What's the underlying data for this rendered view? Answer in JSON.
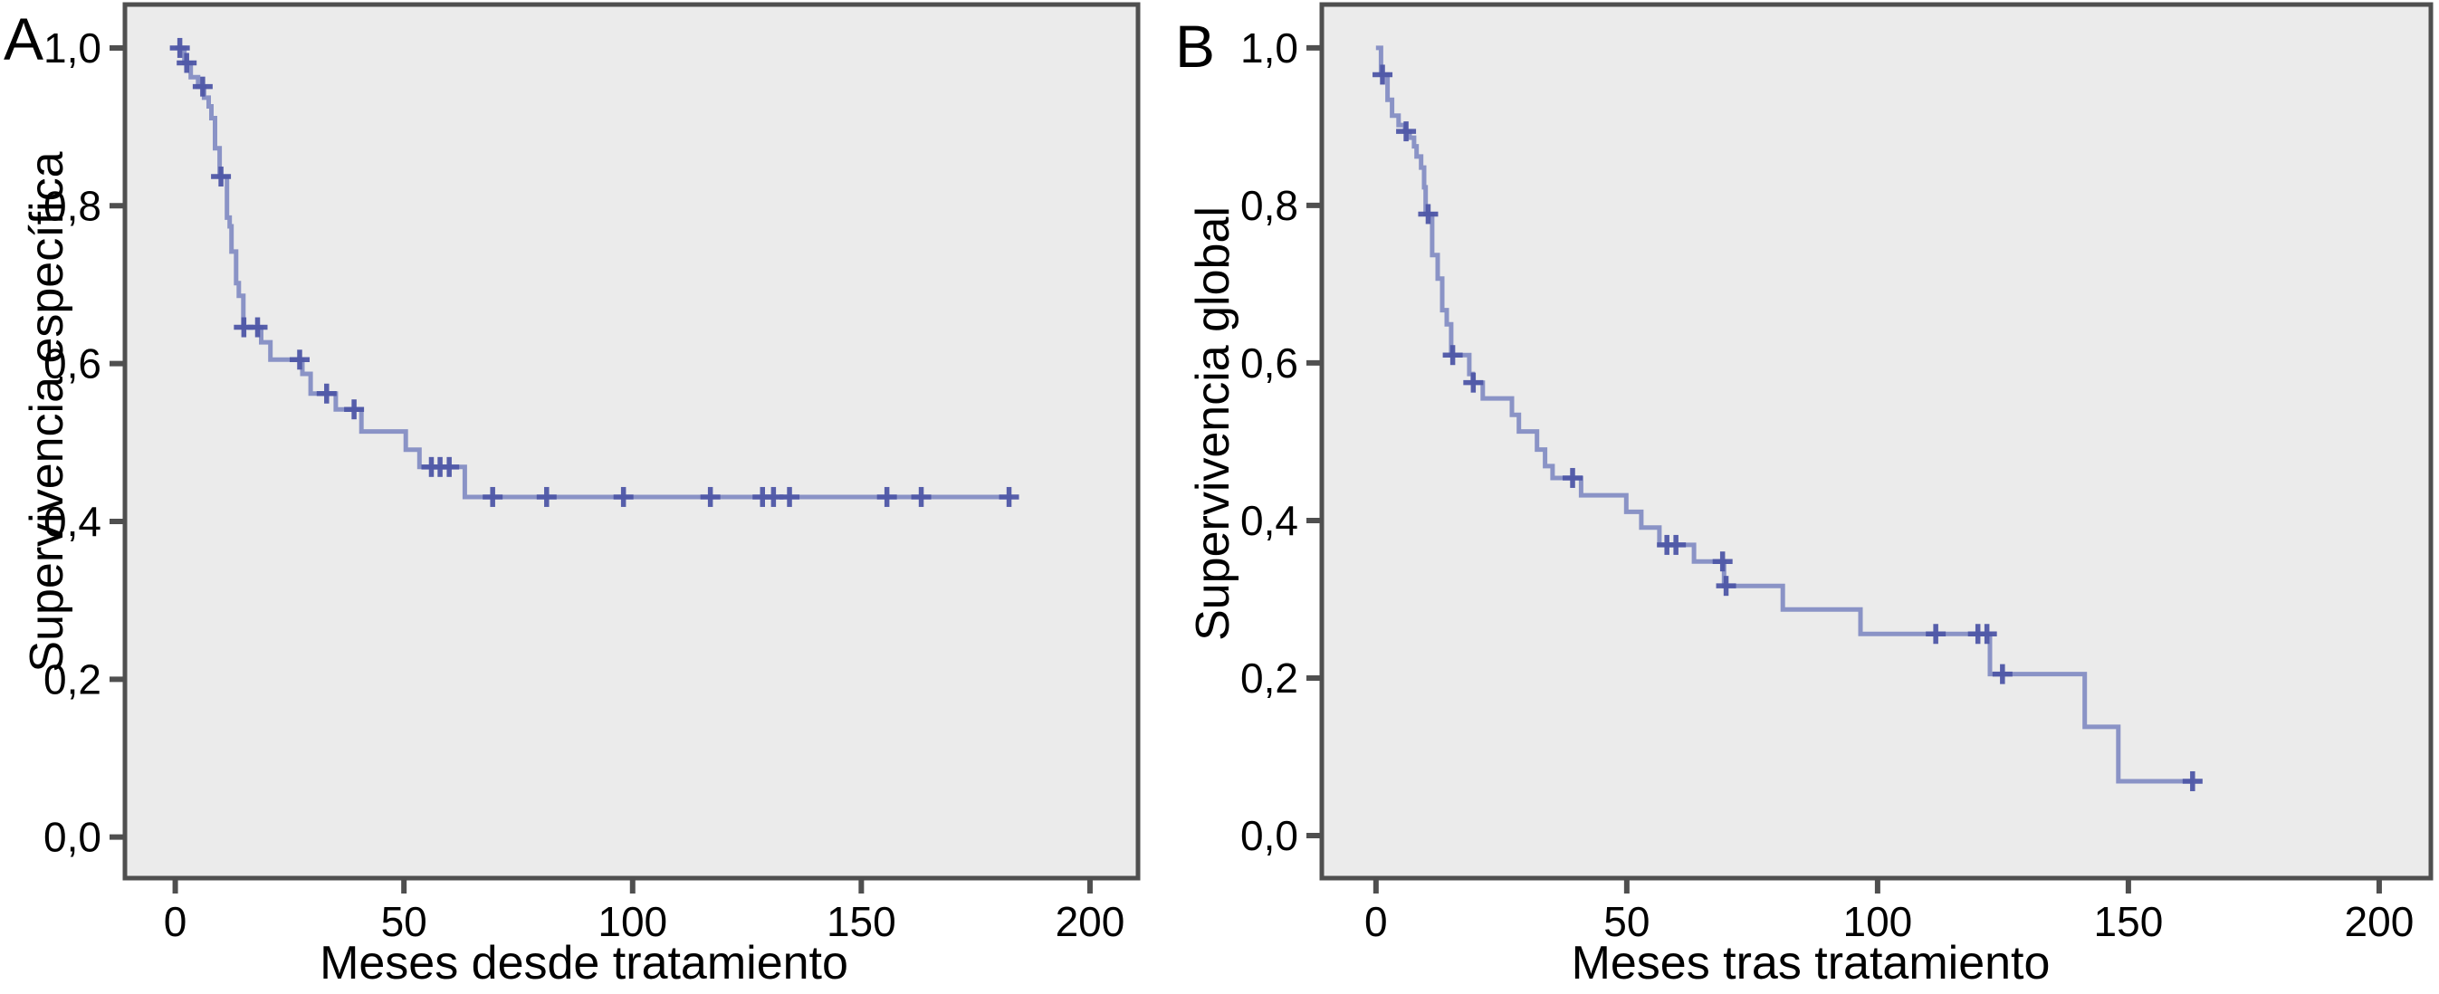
{
  "figure": {
    "background": "#ffffff",
    "plot_background": "#ebebeb",
    "border_color": "#4f4f4f",
    "tick_color": "#4f4f4f",
    "text_color": "#000000",
    "curve_color": "#8a93c6",
    "censor_color": "#4f57a7",
    "panels": [
      {
        "letter": "A",
        "ylabel": "Supervivencia específica",
        "xlabel": "Meses desde tratamiento"
      },
      {
        "letter": "B",
        "ylabel": "Supervivencia global",
        "xlabel": "Meses tras tratamiento"
      }
    ]
  },
  "chart_data": [
    {
      "type": "line",
      "subtype": "kaplan-meier-step",
      "panel": "A",
      "title": "",
      "xlabel": "Meses desde tratamiento",
      "ylabel": "Supervivencia específica",
      "legend": false,
      "grid": false,
      "xlim": [
        -11,
        210.5
      ],
      "ylim": [
        -0.052,
        1.055
      ],
      "xtick_values": [
        0,
        50,
        100,
        150,
        200
      ],
      "xtick_labels": [
        "0",
        "50",
        "100",
        "150",
        "200"
      ],
      "ytick_values": [
        1.0,
        0.8,
        0.6,
        0.4,
        0.2,
        0.0
      ],
      "ytick_labels": [
        "1,0",
        "0,8",
        "0,6",
        "0,4",
        "0,2",
        "0,0"
      ],
      "series": [
        {
          "name": "Supervivencia específica",
          "steps": [
            [
              0,
              1.0
            ],
            [
              2,
              1.0
            ],
            [
              2,
              0.981
            ],
            [
              3.4,
              0.981
            ],
            [
              3.4,
              0.963
            ],
            [
              5,
              0.963
            ],
            [
              5,
              0.951
            ],
            [
              6.3,
              0.951
            ],
            [
              6.3,
              0.937
            ],
            [
              7.3,
              0.937
            ],
            [
              7.3,
              0.926
            ],
            [
              7.9,
              0.926
            ],
            [
              7.9,
              0.911
            ],
            [
              8.7,
              0.911
            ],
            [
              8.7,
              0.873
            ],
            [
              9.7,
              0.873
            ],
            [
              9.7,
              0.837
            ],
            [
              11.3,
              0.837
            ],
            [
              11.3,
              0.785
            ],
            [
              11.9,
              0.785
            ],
            [
              11.9,
              0.774
            ],
            [
              12.3,
              0.774
            ],
            [
              12.3,
              0.742
            ],
            [
              13.3,
              0.742
            ],
            [
              13.3,
              0.702
            ],
            [
              13.9,
              0.702
            ],
            [
              13.9,
              0.686
            ],
            [
              14.9,
              0.686
            ],
            [
              14.9,
              0.646
            ],
            [
              18.8,
              0.646
            ],
            [
              18.8,
              0.627
            ],
            [
              20.8,
              0.627
            ],
            [
              20.8,
              0.605
            ],
            [
              27.8,
              0.605
            ],
            [
              27.8,
              0.587
            ],
            [
              29.6,
              0.587
            ],
            [
              29.6,
              0.562
            ],
            [
              35.1,
              0.562
            ],
            [
              35.1,
              0.542
            ],
            [
              40.7,
              0.542
            ],
            [
              40.7,
              0.514
            ],
            [
              50.4,
              0.514
            ],
            [
              50.4,
              0.491
            ],
            [
              53.4,
              0.491
            ],
            [
              53.4,
              0.469
            ],
            [
              63.3,
              0.469
            ],
            [
              63.3,
              0.431
            ],
            [
              183,
              0.431
            ]
          ],
          "censors": [
            [
              1,
              1.0
            ],
            [
              2.5,
              0.981
            ],
            [
              6,
              0.951
            ],
            [
              10,
              0.837
            ],
            [
              15,
              0.646
            ],
            [
              18,
              0.646
            ],
            [
              27.2,
              0.605
            ],
            [
              33.1,
              0.562
            ],
            [
              39.1,
              0.542
            ],
            [
              56,
              0.469
            ],
            [
              57.9,
              0.469
            ],
            [
              59.9,
              0.469
            ],
            [
              69.4,
              0.431
            ],
            [
              81.2,
              0.431
            ],
            [
              98,
              0.431
            ],
            [
              117,
              0.431
            ],
            [
              128.4,
              0.431
            ],
            [
              130.8,
              0.431
            ],
            [
              134.3,
              0.431
            ],
            [
              155.6,
              0.431
            ],
            [
              163.1,
              0.431
            ],
            [
              182.3,
              0.431
            ]
          ]
        }
      ]
    },
    {
      "type": "line",
      "subtype": "kaplan-meier-step",
      "panel": "B",
      "title": "",
      "xlabel": "Meses tras tratamiento",
      "ylabel": "Supervivencia global",
      "legend": false,
      "grid": false,
      "xlim": [
        -10.8,
        210.3
      ],
      "ylim": [
        -0.054,
        1.055
      ],
      "xtick_values": [
        0,
        50,
        100,
        150,
        200
      ],
      "xtick_labels": [
        "0",
        "50",
        "100",
        "150",
        "200"
      ],
      "ytick_values": [
        1.0,
        0.8,
        0.6,
        0.4,
        0.2,
        0.0
      ],
      "ytick_labels": [
        "1,0",
        "0,8",
        "0,6",
        "0,4",
        "0,2",
        "0,0"
      ],
      "series": [
        {
          "name": "Supervivencia global",
          "steps": [
            [
              0,
              1.0
            ],
            [
              1,
              1.0
            ],
            [
              1,
              0.966
            ],
            [
              2.3,
              0.966
            ],
            [
              2.3,
              0.934
            ],
            [
              3.2,
              0.934
            ],
            [
              3.2,
              0.914
            ],
            [
              4.5,
              0.914
            ],
            [
              4.5,
              0.902
            ],
            [
              5.8,
              0.902
            ],
            [
              5.8,
              0.894
            ],
            [
              6.7,
              0.894
            ],
            [
              6.7,
              0.886
            ],
            [
              7.6,
              0.886
            ],
            [
              7.6,
              0.875
            ],
            [
              8.1,
              0.875
            ],
            [
              8.1,
              0.862
            ],
            [
              9,
              0.862
            ],
            [
              9,
              0.848
            ],
            [
              9.6,
              0.848
            ],
            [
              9.6,
              0.823
            ],
            [
              9.9,
              0.823
            ],
            [
              9.9,
              0.789
            ],
            [
              11.2,
              0.789
            ],
            [
              11.2,
              0.737
            ],
            [
              12.3,
              0.737
            ],
            [
              12.3,
              0.707
            ],
            [
              13.2,
              0.707
            ],
            [
              13.2,
              0.667
            ],
            [
              14.1,
              0.667
            ],
            [
              14.1,
              0.649
            ],
            [
              15,
              0.649
            ],
            [
              15,
              0.61
            ],
            [
              18.6,
              0.61
            ],
            [
              18.6,
              0.586
            ],
            [
              19.3,
              0.586
            ],
            [
              19.3,
              0.575
            ],
            [
              21.3,
              0.575
            ],
            [
              21.3,
              0.555
            ],
            [
              27.1,
              0.555
            ],
            [
              27.1,
              0.534
            ],
            [
              28.5,
              0.534
            ],
            [
              28.5,
              0.513
            ],
            [
              32.1,
              0.513
            ],
            [
              32.1,
              0.49
            ],
            [
              33.7,
              0.49
            ],
            [
              33.7,
              0.469
            ],
            [
              35.2,
              0.469
            ],
            [
              35.2,
              0.454
            ],
            [
              40.9,
              0.454
            ],
            [
              40.9,
              0.432
            ],
            [
              49.9,
              0.432
            ],
            [
              49.9,
              0.411
            ],
            [
              52.9,
              0.411
            ],
            [
              52.9,
              0.391
            ],
            [
              56.5,
              0.391
            ],
            [
              56.5,
              0.369
            ],
            [
              63.4,
              0.369
            ],
            [
              63.4,
              0.348
            ],
            [
              69.4,
              0.348
            ],
            [
              69.4,
              0.317
            ],
            [
              81.1,
              0.317
            ],
            [
              81.1,
              0.287
            ],
            [
              96.6,
              0.287
            ],
            [
              96.6,
              0.256
            ],
            [
              122.4,
              0.256
            ],
            [
              122.4,
              0.205
            ],
            [
              141.3,
              0.205
            ],
            [
              141.3,
              0.138
            ],
            [
              148,
              0.138
            ],
            [
              148,
              0.069
            ],
            [
              163,
              0.069
            ]
          ],
          "censors": [
            [
              1.3,
              0.966
            ],
            [
              6,
              0.894
            ],
            [
              10.4,
              0.789
            ],
            [
              15.3,
              0.61
            ],
            [
              19.4,
              0.575
            ],
            [
              39.2,
              0.454
            ],
            [
              58,
              0.369
            ],
            [
              59.8,
              0.369
            ],
            [
              69.1,
              0.348
            ],
            [
              69.8,
              0.317
            ],
            [
              111.6,
              0.256
            ],
            [
              120,
              0.256
            ],
            [
              121.8,
              0.256
            ],
            [
              124.9,
              0.205
            ],
            [
              162.8,
              0.069
            ]
          ]
        }
      ]
    }
  ]
}
